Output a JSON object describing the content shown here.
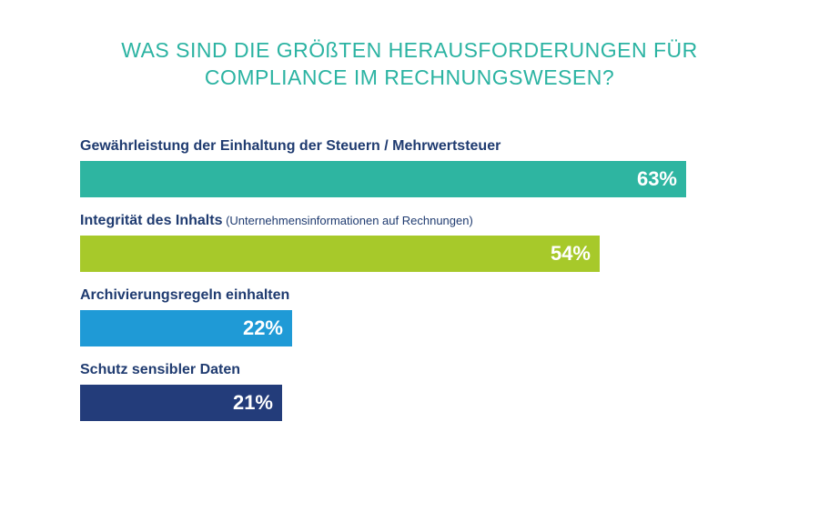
{
  "title": {
    "line1": "WAS SIND DIE GRÖßTEN HERAUSFORDERUNGEN FÜR",
    "line2": "COMPLIANCE IM RECHNUNGSWESEN?"
  },
  "chart_data": {
    "type": "bar",
    "orientation": "horizontal",
    "title": "WAS SIND DIE GRÖßTEN HERAUSFORDERUNGEN FÜR COMPLIANCE IM RECHNUNGSWESEN?",
    "categories": [
      "Gewährleistung der Einhaltung der Steuern / Mehrwertsteuer",
      "Integrität des Inhalts",
      "Archivierungsregeln einhalten",
      "Schutz sensibler Daten"
    ],
    "category_notes": [
      "",
      "(Unternehmensinformationen auf Rechnungen)",
      "",
      ""
    ],
    "values": [
      63,
      54,
      22,
      21
    ],
    "value_labels": [
      "63%",
      "54%",
      "22%",
      "21%"
    ],
    "unit": "%",
    "colors": [
      "#2eb5a1",
      "#a7c92a",
      "#1f9ad6",
      "#233c7a"
    ],
    "grid": false,
    "legend": "none"
  }
}
